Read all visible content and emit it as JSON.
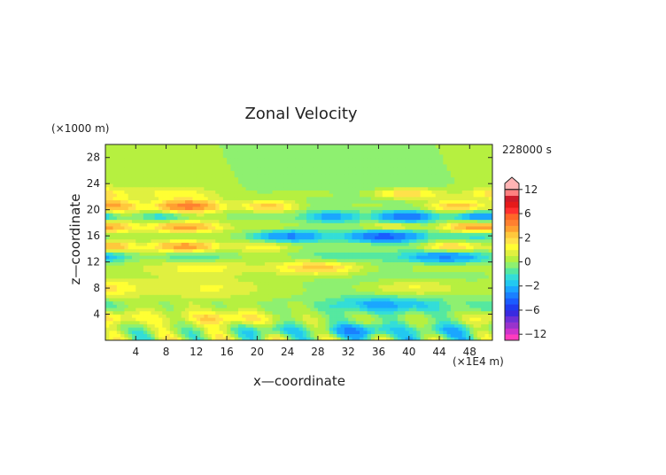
{
  "chart_data": {
    "type": "heatmap",
    "title": "Zonal Velocity",
    "xlabel": "x—coordinate",
    "ylabel": "z—coordinate",
    "x_unit": "(×1E4 m)",
    "y_unit": "(×1000 m)",
    "time_label": "228000 s",
    "xlim": [
      0,
      51
    ],
    "ylim": [
      0,
      30
    ],
    "x_ticks": [
      "4",
      "8",
      "12",
      "16",
      "20",
      "24",
      "28",
      "32",
      "36",
      "40",
      "44",
      "48"
    ],
    "y_ticks": [
      "4",
      "8",
      "12",
      "16",
      "20",
      "24",
      "28"
    ],
    "colorbar": {
      "ticks": [
        "12",
        "6",
        "2",
        "0",
        "−2",
        "−6",
        "−12"
      ],
      "levels": [
        -14,
        -12,
        -10,
        -8,
        -7,
        -6,
        -5,
        -4,
        -3,
        -2,
        -1.5,
        -1,
        -0.5,
        0,
        0.5,
        1,
        1.5,
        2,
        3,
        4,
        5,
        6,
        7,
        8,
        10,
        12,
        14
      ],
      "colors": [
        "#ff3cbe",
        "#cc33cc",
        "#9933cc",
        "#6f2fd6",
        "#3a2ae0",
        "#1f3cf0",
        "#1a5cff",
        "#1a80ff",
        "#1aa6ff",
        "#22c8f0",
        "#33ddd8",
        "#55e8a0",
        "#8ef070",
        "#b6f040",
        "#e0f040",
        "#ffff33",
        "#ffe14a",
        "#ffc83c",
        "#ffa030",
        "#ff8030",
        "#ff6628",
        "#ff3030",
        "#e61a1a",
        "#cc1a2a",
        "#ff8080",
        "#ffb4b4"
      ]
    },
    "bands": [
      {
        "z": 20.6,
        "amp": 4.5,
        "width": 0.9,
        "k": 0.55,
        "phase": 0.2
      },
      {
        "z": 19.0,
        "amp": -4.0,
        "width": 0.8,
        "k": 0.6,
        "phase": 1.4
      },
      {
        "z": 17.4,
        "amp": 4.0,
        "width": 0.8,
        "k": 0.5,
        "phase": 0.7
      },
      {
        "z": 16.0,
        "amp": -4.5,
        "width": 0.9,
        "k": 0.45,
        "phase": 2.1
      },
      {
        "z": 14.4,
        "amp": 3.5,
        "width": 0.8,
        "k": 0.55,
        "phase": 0.4
      },
      {
        "z": 12.8,
        "amp": -3.0,
        "width": 0.9,
        "k": 0.4,
        "phase": 1.0
      },
      {
        "z": 11.2,
        "amp": 2.5,
        "width": 1.1,
        "k": 0.35,
        "phase": 2.6
      },
      {
        "z": 8.0,
        "amp": 2.0,
        "width": 1.3,
        "k": 0.3,
        "phase": 0.9
      },
      {
        "z": 5.5,
        "amp": -2.0,
        "width": 1.2,
        "k": 0.3,
        "phase": 1.7
      },
      {
        "z": 3.5,
        "amp": 2.0,
        "width": 1.0,
        "k": 0.35,
        "phase": 0.3
      },
      {
        "z": 1.5,
        "amp": -2.5,
        "width": 1.0,
        "k": 0.5,
        "phase": 2.2
      },
      {
        "z": 22.5,
        "amp": 2.5,
        "width": 0.8,
        "k": 0.45,
        "phase": 1.2
      }
    ]
  }
}
